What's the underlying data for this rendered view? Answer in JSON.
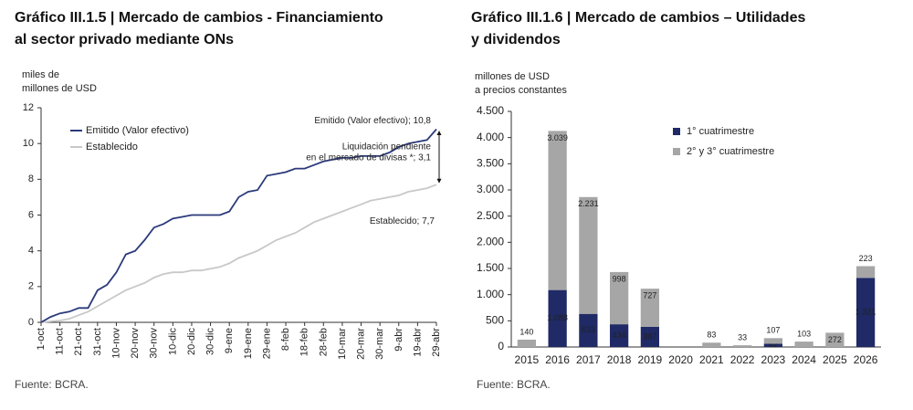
{
  "chart_data": [
    {
      "type": "line",
      "title": [
        "Gráfico III.1.5 | Mercado de cambios - Financiamiento",
        "al sector privado mediante ONs"
      ],
      "y_label": [
        "miles de",
        "millones de USD"
      ],
      "categories": [
        "1-oct",
        null,
        "11-oct",
        null,
        "21-oct",
        null,
        "31-oct",
        null,
        "10-nov",
        null,
        "20-nov",
        null,
        "30-nov",
        null,
        "10-dic",
        null,
        "20-dic",
        null,
        "30-dic",
        null,
        "9-ene",
        null,
        "19-ene",
        null,
        "29-ene",
        null,
        "8-feb",
        null,
        "18-feb",
        null,
        "28-feb",
        null,
        "10-mar",
        null,
        "20-mar",
        null,
        "30-mar",
        null,
        "9-abr",
        null,
        "19-abr",
        null,
        "29-abr"
      ],
      "series": [
        {
          "name": "Emitido (Valor efectivo)",
          "color": "#2b3a7a",
          "values": [
            0,
            0.3,
            0.5,
            0.6,
            0.8,
            0.8,
            1.8,
            2.1,
            2.8,
            3.8,
            4.0,
            4.6,
            5.3,
            5.5,
            5.8,
            5.9,
            6.0,
            6.0,
            6.0,
            6.0,
            6.2,
            7.0,
            7.3,
            7.4,
            8.2,
            8.3,
            8.4,
            8.6,
            8.6,
            8.8,
            9.0,
            9.1,
            9.2,
            9.2,
            9.3,
            9.3,
            9.3,
            9.5,
            9.8,
            10.0,
            10.1,
            10.2,
            10.8
          ]
        },
        {
          "name": "Establecido",
          "color": "#c8c8c8",
          "values": [
            0,
            0.05,
            0.1,
            0.2,
            0.4,
            0.6,
            0.9,
            1.2,
            1.5,
            1.8,
            2.0,
            2.2,
            2.5,
            2.7,
            2.8,
            2.8,
            2.9,
            2.9,
            3.0,
            3.1,
            3.3,
            3.6,
            3.8,
            4.0,
            4.3,
            4.6,
            4.8,
            5.0,
            5.3,
            5.6,
            5.8,
            6.0,
            6.2,
            6.4,
            6.6,
            6.8,
            6.9,
            7.0,
            7.1,
            7.3,
            7.4,
            7.5,
            7.7
          ]
        }
      ],
      "annotations": {
        "emitido": "Emitido (Valor efectivo); 10,8",
        "pendiente": [
          "Liquidación pendiente",
          "en el mercado de divisas *; 3,1"
        ],
        "establecido": "Establecido; 7,7"
      },
      "ylim": [
        0,
        12
      ],
      "yticks": [
        0,
        2,
        4,
        6,
        8,
        10,
        12
      ],
      "source": "Fuente: BCRA."
    },
    {
      "type": "stacked-bar",
      "title": [
        "Gráfico III.1.6 | Mercado de cambios – Utilidades",
        "y dividendos"
      ],
      "y_label": [
        "millones de USD",
        "a precios constantes"
      ],
      "categories": [
        "2015",
        "2016",
        "2017",
        "2018",
        "2019",
        "2020",
        "2021",
        "2022",
        "2023",
        "2024",
        "2025",
        "2026"
      ],
      "series": [
        {
          "name": "1° cuatrimestre",
          "color": "#1f2a66",
          "values": [
            null,
            1088,
            633,
            434,
            387,
            null,
            null,
            null,
            62,
            null,
            null,
            1321
          ],
          "value_labels": [
            null,
            "1.088",
            "633",
            "434",
            "387",
            null,
            null,
            null,
            "62",
            null,
            null,
            "1.321"
          ]
        },
        {
          "name": "2° y 3° cuatrimestre",
          "color": "#a6a6a6",
          "values": [
            140,
            3039,
            2231,
            998,
            727,
            null,
            83,
            33,
            107,
            103,
            272,
            223
          ],
          "value_labels": [
            "140",
            "3.039",
            "2.231",
            "998",
            "727",
            null,
            "83",
            "33",
            "107",
            "103",
            "272",
            "223"
          ]
        }
      ],
      "ylim": [
        0,
        4500
      ],
      "yticks": [
        0,
        500,
        {
          "value": 1000,
          "label": "1.000"
        },
        {
          "value": 1500,
          "label": "1.500"
        },
        {
          "value": 2000,
          "label": "2.000"
        },
        {
          "value": 2500,
          "label": "2.500"
        },
        {
          "value": 3000,
          "label": "3.000"
        },
        {
          "value": 3500,
          "label": "3.500"
        },
        {
          "value": 4000,
          "label": "4.000"
        },
        {
          "value": 4500,
          "label": "4.500"
        }
      ],
      "source": "Fuente: BCRA."
    }
  ]
}
